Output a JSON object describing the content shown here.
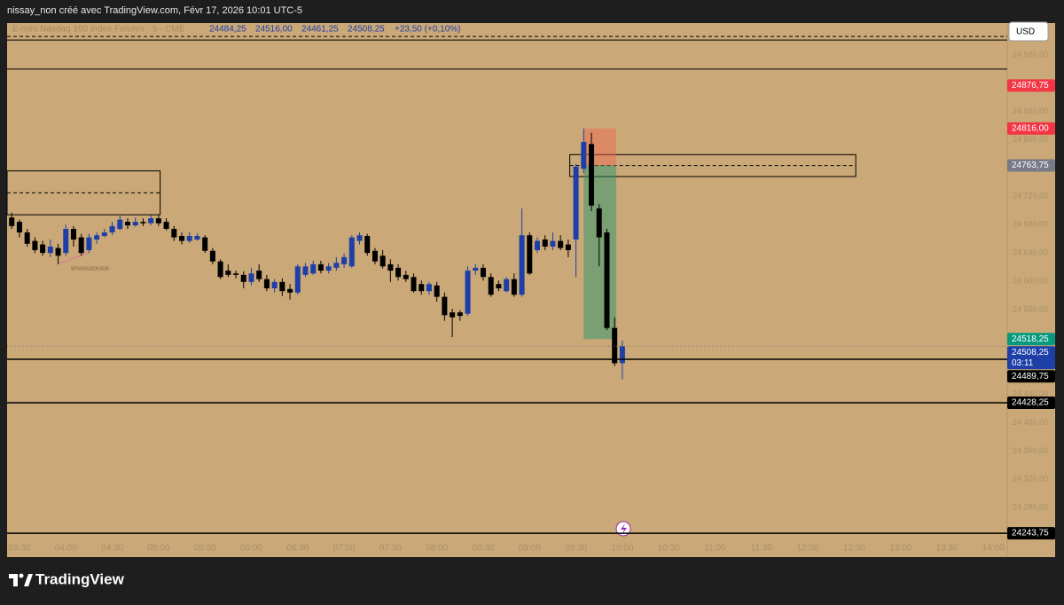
{
  "chart_data": {
    "type": "candlestick",
    "title": "nissay_non créé avec TradingView.com, Févr 17, 2026 10:01 UTC-5",
    "symbol": "E-mini Nasdaq 100 Index Futures · 5 · CME",
    "ohlc_labels": [
      "24484,25",
      "24516,00",
      "24461,25",
      "24508,25"
    ],
    "change_label": "+23,50 (+0,10%)",
    "currency": "USD",
    "brand": "TradingView",
    "annotation": "SPX500USD/US30",
    "up_color": "#1e3fa8",
    "down_color": "#000000",
    "x": [
      205,
      210,
      215,
      220,
      225,
      230,
      235,
      240,
      245,
      250,
      255,
      260,
      265,
      270,
      275,
      280,
      285,
      290,
      295,
      300,
      305,
      310,
      315,
      320,
      325,
      330,
      335,
      340,
      345,
      350,
      355,
      360,
      365,
      370,
      375,
      380,
      385,
      390,
      395,
      400,
      405,
      410,
      415,
      420,
      425,
      430,
      435,
      440,
      445,
      450,
      455,
      460,
      465,
      470,
      475,
      480,
      485,
      490,
      495,
      500,
      505,
      510,
      515,
      520,
      525,
      530,
      535,
      540,
      545,
      550,
      555,
      560,
      565,
      570,
      575,
      580,
      585,
      590,
      595,
      600
    ],
    "open": [
      24690,
      24684,
      24669,
      24657,
      24652,
      24640,
      24647,
      24640,
      24674,
      24662,
      24644,
      24659,
      24664,
      24669,
      24674,
      24684,
      24679,
      24684,
      24682,
      24689,
      24684,
      24674,
      24664,
      24657,
      24659,
      24662,
      24643,
      24628,
      24615,
      24611,
      24609,
      24599,
      24615,
      24603,
      24590,
      24599,
      24589,
      24584,
      24609,
      24611,
      24624,
      24615,
      24619,
      24624,
      24621,
      24657,
      24664,
      24643,
      24636,
      24624,
      24619,
      24609,
      24606,
      24596,
      24586,
      24594,
      24578,
      24556,
      24556,
      24554,
      24615,
      24619,
      24606,
      24596,
      24586,
      24603,
      24581,
      24665,
      24644,
      24659,
      24649,
      24657,
      24652,
      24659,
      24759,
      24794,
      24703,
      24669,
      24534,
      24484.25
    ],
    "high": [
      24697,
      24687,
      24674,
      24662,
      24657,
      24659,
      24653,
      24680,
      24678,
      24667,
      24667,
      24669,
      24674,
      24684,
      24693,
      24689,
      24690,
      24689,
      24694,
      24694,
      24689,
      24678,
      24669,
      24669,
      24668,
      24665,
      24647,
      24631,
      24624,
      24615,
      24614,
      24619,
      24624,
      24609,
      24603,
      24604,
      24596,
      24624,
      24626,
      24629,
      24629,
      24626,
      24634,
      24639,
      24665,
      24669,
      24667,
      24647,
      24644,
      24631,
      24624,
      24615,
      24611,
      24601,
      24599,
      24599,
      24584,
      24561,
      24559,
      24621,
      24624,
      24624,
      24611,
      24601,
      24606,
      24611,
      24703,
      24669,
      24662,
      24665,
      24669,
      24665,
      24659,
      24766,
      24816,
      24810,
      24709,
      24674,
      24549,
      24516
    ],
    "low": [
      24674,
      24662,
      24649,
      24640,
      24636,
      24634,
      24624,
      24636,
      24649,
      24636,
      24640,
      24653,
      24662,
      24665,
      24672,
      24674,
      24677,
      24678,
      24679,
      24678,
      24672,
      24657,
      24652,
      24654,
      24657,
      24640,
      24624,
      24603,
      24606,
      24604,
      24590,
      24594,
      24599,
      24586,
      24584,
      24579,
      24574,
      24581,
      24606,
      24609,
      24611,
      24611,
      24615,
      24619,
      24619,
      24652,
      24636,
      24624,
      24618,
      24599,
      24601,
      24599,
      24584,
      24581,
      24581,
      24571,
      24544,
      24521,
      24544,
      24551,
      24609,
      24601,
      24578,
      24586,
      24584,
      24578,
      24578,
      24609,
      24640,
      24644,
      24644,
      24644,
      24634,
      24606,
      24753,
      24699,
      24621,
      24531,
      24480,
      24461.25
    ],
    "close": [
      24678,
      24669,
      24653,
      24644,
      24640,
      24649,
      24636,
      24674,
      24659,
      24640,
      24662,
      24665,
      24669,
      24678,
      24687,
      24679,
      24684,
      24682,
      24689,
      24682,
      24674,
      24662,
      24657,
      24664,
      24664,
      24643,
      24628,
      24606,
      24609,
      24609,
      24599,
      24611,
      24603,
      24590,
      24599,
      24586,
      24584,
      24621,
      24621,
      24624,
      24615,
      24621,
      24626,
      24634,
      24662,
      24665,
      24640,
      24628,
      24621,
      24615,
      24606,
      24603,
      24586,
      24586,
      24596,
      24578,
      24552,
      24549,
      24551,
      24615,
      24619,
      24606,
      24581,
      24590,
      24603,
      24581,
      24665,
      24611,
      24657,
      24649,
      24657,
      24647,
      24644,
      24762,
      24797,
      24707,
      24662,
      24534,
      24484,
      24508.25
    ],
    "xlim": [
      202,
      849
    ],
    "xticks": [
      {
        "value": 210,
        "label": "03:30"
      },
      {
        "value": 240,
        "label": "04:00"
      },
      {
        "value": 270,
        "label": "04:30"
      },
      {
        "value": 300,
        "label": "05:00"
      },
      {
        "value": 330,
        "label": "05:30"
      },
      {
        "value": 360,
        "label": "06:00"
      },
      {
        "value": 390,
        "label": "06:30"
      },
      {
        "value": 420,
        "label": "07:00"
      },
      {
        "value": 450,
        "label": "07:30"
      },
      {
        "value": 480,
        "label": "08:00"
      },
      {
        "value": 510,
        "label": "08:30"
      },
      {
        "value": 540,
        "label": "09:00"
      },
      {
        "value": 570,
        "label": "09:30"
      },
      {
        "value": 600,
        "label": "10:00"
      },
      {
        "value": 630,
        "label": "10:30"
      },
      {
        "value": 660,
        "label": "11:00"
      },
      {
        "value": 690,
        "label": "11:30"
      },
      {
        "value": 720,
        "label": "12:00"
      },
      {
        "value": 750,
        "label": "12:30"
      },
      {
        "value": 780,
        "label": "13:00"
      },
      {
        "value": 810,
        "label": "13:30"
      },
      {
        "value": 840,
        "label": "14:00"
      }
    ],
    "ylim": [
      24210,
      24960
    ],
    "yticks": [
      {
        "value": 24920,
        "label": "24 920,00"
      },
      {
        "value": 24840,
        "label": "24 840,00"
      },
      {
        "value": 24800,
        "label": "24 800,00"
      },
      {
        "value": 24720,
        "label": "24 720,00"
      },
      {
        "value": 24680,
        "label": "24 680,00"
      },
      {
        "value": 24640,
        "label": "24 640,00"
      },
      {
        "value": 24600,
        "label": "24 600,00"
      },
      {
        "value": 24560,
        "label": "24 560,00"
      },
      {
        "value": 24440,
        "label": "24 440,00"
      },
      {
        "value": 24400,
        "label": "24 400,00"
      },
      {
        "value": 24360,
        "label": "24 360,00"
      },
      {
        "value": 24320,
        "label": "24 320,00"
      },
      {
        "value": 24280,
        "label": "24 280,00"
      }
    ],
    "price_labels": [
      {
        "value": 24876.75,
        "label": "24876,75",
        "color": "#f23645"
      },
      {
        "value": 24816,
        "label": "24816,00",
        "color": "#f23645"
      },
      {
        "value": 24763.75,
        "label": "24763,75",
        "color": "#787b86"
      },
      {
        "value": 24518.25,
        "label": "24518,25",
        "color": "#089981"
      },
      {
        "value": 24508.25,
        "label": "24508,25",
        "color": "#1e3fa8",
        "countdown": "03:11",
        "line": "dotted"
      },
      {
        "value": 24489.75,
        "label": "24489,75",
        "color": "#000000",
        "line": "solid"
      },
      {
        "value": 24428.25,
        "label": "24428,25",
        "color": "#000000",
        "line": "solid"
      },
      {
        "value": 24243.75,
        "label": "24243,75",
        "color": "#000000",
        "line": "solid"
      }
    ],
    "lines": [
      {
        "value": 24946,
        "style": "dashed"
      },
      {
        "value": 24941,
        "style": "solid"
      },
      {
        "value": 24900,
        "style": "solid"
      }
    ],
    "boxes": [
      {
        "x": [
          202,
          301
        ],
        "y": [
          24694,
          24756
        ]
      },
      {
        "x": [
          566,
          751
        ],
        "y": [
          24748,
          24779
        ]
      }
    ],
    "position": {
      "x": [
        575,
        596
      ],
      "stop": 24816,
      "entry": 24763.75,
      "target": 24518.25
    }
  }
}
